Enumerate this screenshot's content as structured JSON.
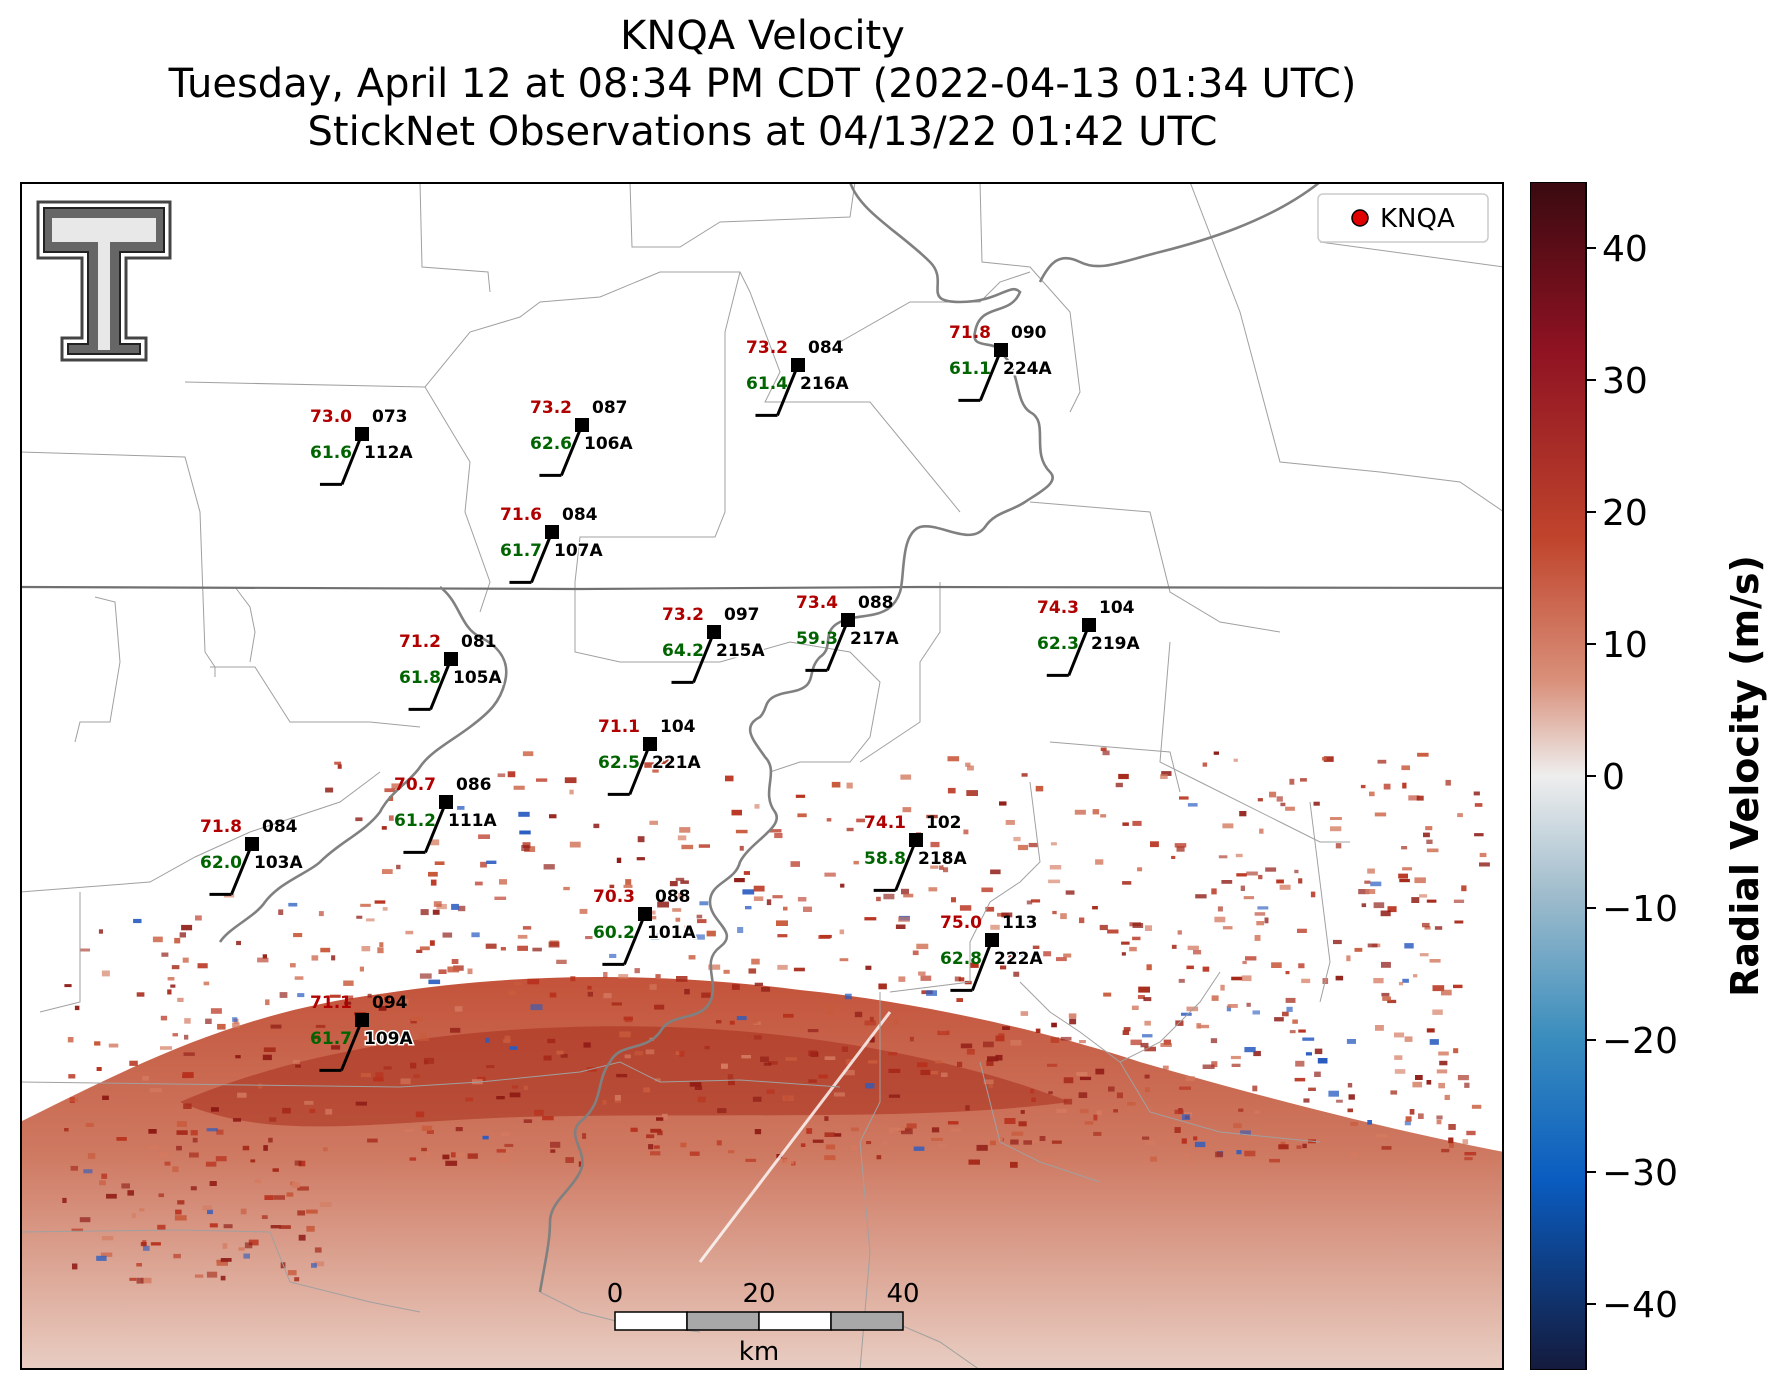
{
  "title": {
    "line1": "KNQA Velocity",
    "line2": "Tuesday, April 12 at 08:34 PM CDT (2022-04-13 01:34 UTC)",
    "line3": "StickNet Observations at 04/13/22 01:42 UTC"
  },
  "legend": {
    "label": "KNQA",
    "marker_color": "#e00000"
  },
  "scale_bar": {
    "ticks": [
      "0",
      "20",
      "40"
    ],
    "unit": "km"
  },
  "colorbar": {
    "label": "Radial Velocity (m/s)",
    "ticks": [
      "40",
      "30",
      "20",
      "10",
      "0",
      "−10",
      "−20",
      "−30",
      "−40"
    ],
    "range": [
      -45,
      45
    ],
    "colormap": "red-white-blue diverging (dark red high, dark navy low)"
  },
  "colors": {
    "temp": "#b00000",
    "dew": "#006400",
    "stations_text": "#000000"
  },
  "stations": [
    {
      "id": "112A",
      "temp": "73.0",
      "dew": "61.6",
      "dir": "073"
    },
    {
      "id": "106A",
      "temp": "73.2",
      "dew": "62.6",
      "dir": "087"
    },
    {
      "id": "216A",
      "temp": "73.2",
      "dew": "61.4",
      "dir": "084"
    },
    {
      "id": "224A",
      "temp": "71.8",
      "dew": "61.1",
      "dir": "090"
    },
    {
      "id": "107A",
      "temp": "71.6",
      "dew": "61.7",
      "dir": "084"
    },
    {
      "id": "215A",
      "temp": "73.2",
      "dew": "64.2",
      "dir": "097"
    },
    {
      "id": "217A",
      "temp": "73.4",
      "dew": "59.3",
      "dir": "088"
    },
    {
      "id": "219A",
      "temp": "74.3",
      "dew": "62.3",
      "dir": "104"
    },
    {
      "id": "105A",
      "temp": "71.2",
      "dew": "61.8",
      "dir": "081"
    },
    {
      "id": "221A",
      "temp": "71.1",
      "dew": "62.5",
      "dir": "104"
    },
    {
      "id": "111A",
      "temp": "70.7",
      "dew": "61.2",
      "dir": "086"
    },
    {
      "id": "103A",
      "temp": "71.8",
      "dew": "62.0",
      "dir": "084"
    },
    {
      "id": "218A",
      "temp": "74.1",
      "dew": "58.8",
      "dir": "102"
    },
    {
      "id": "101A",
      "temp": "70.3",
      "dew": "60.2",
      "dir": "088"
    },
    {
      "id": "222A",
      "temp": "75.0",
      "dew": "62.8",
      "dir": "113"
    },
    {
      "id": "109A",
      "temp": "71.1",
      "dew": "61.7",
      "dir": "094"
    }
  ]
}
